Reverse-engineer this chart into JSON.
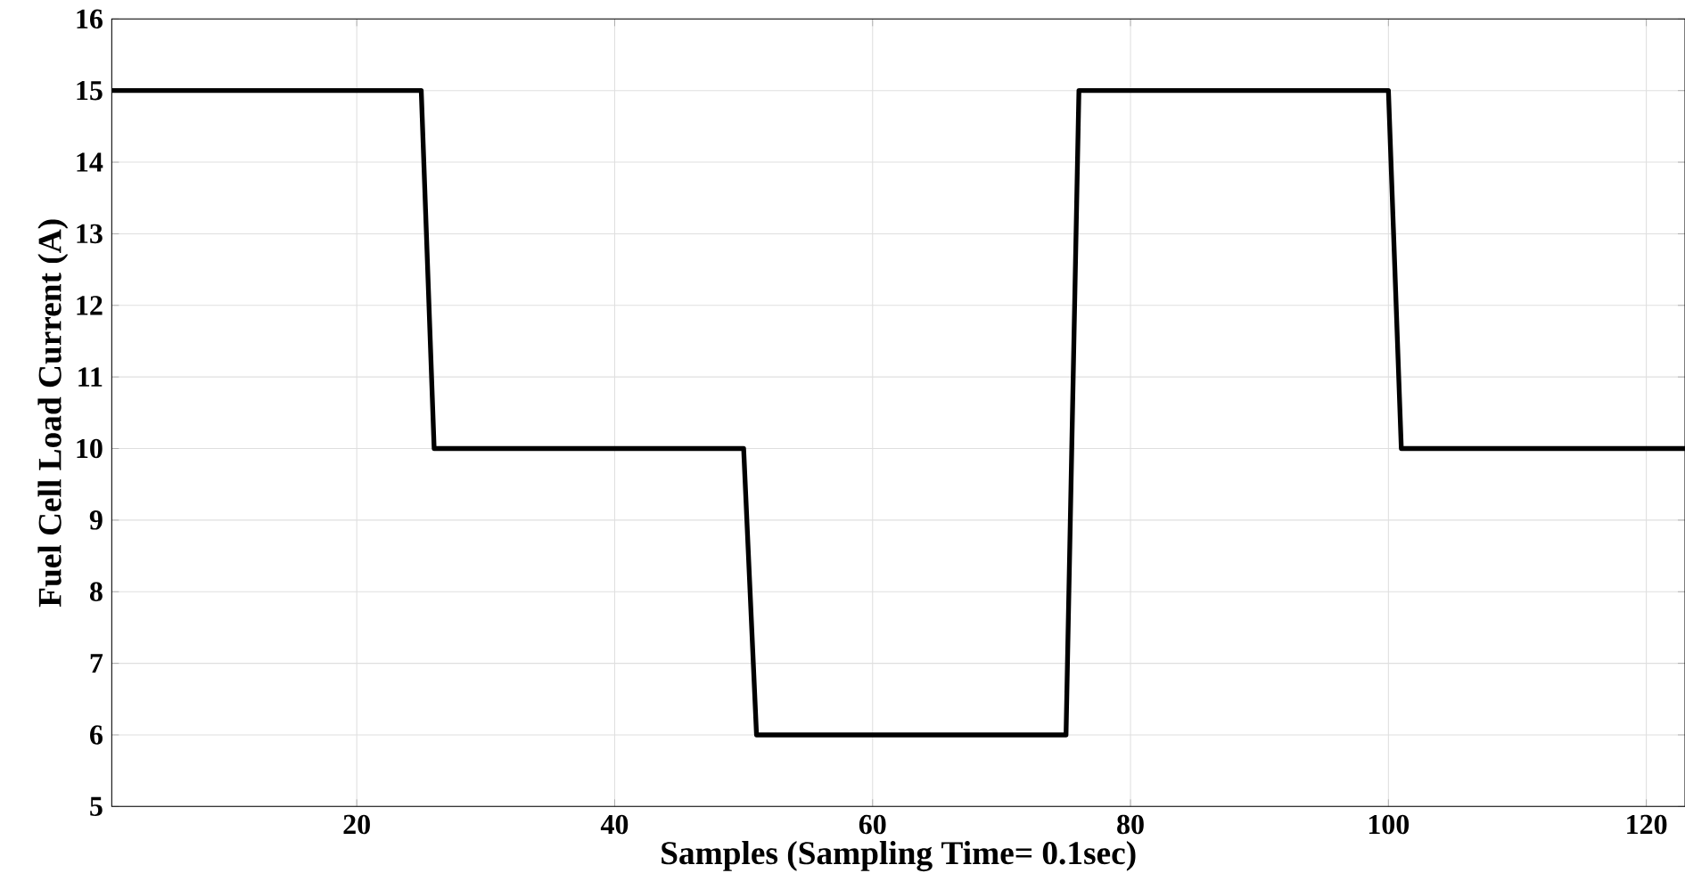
{
  "chart_data": {
    "type": "line",
    "xlabel": "Samples (Sampling Time= 0.1sec)",
    "ylabel": "Fuel Cell Load Current (A)",
    "x": [
      1,
      25,
      26,
      50,
      51,
      75,
      76,
      100,
      101,
      123
    ],
    "series": [
      {
        "color": "#000000",
        "values": [
          15,
          15,
          10,
          10,
          6,
          6,
          15,
          15,
          10,
          10
        ]
      }
    ],
    "xlim": [
      1,
      123
    ],
    "ylim": [
      5,
      16
    ],
    "xticks": [
      20,
      40,
      60,
      80,
      100,
      120
    ],
    "yticks": [
      5,
      6,
      7,
      8,
      9,
      10,
      11,
      12,
      13,
      14,
      15,
      16
    ],
    "grid": true,
    "line_style": "solid",
    "marker": "none"
  }
}
